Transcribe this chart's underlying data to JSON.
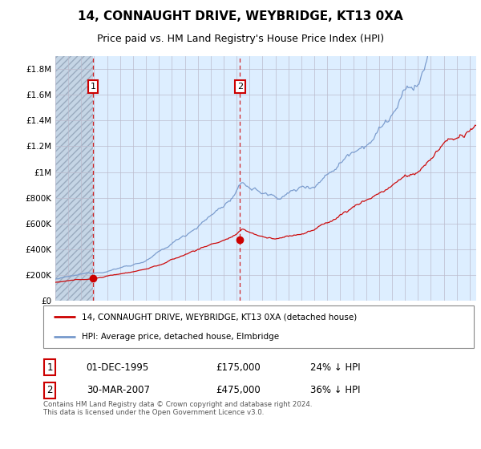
{
  "title": "14, CONNAUGHT DRIVE, WEYBRIDGE, KT13 0XA",
  "subtitle": "Price paid vs. HM Land Registry's House Price Index (HPI)",
  "ylabel_ticks": [
    "£0",
    "£200K",
    "£400K",
    "£600K",
    "£800K",
    "£1M",
    "£1.2M",
    "£1.4M",
    "£1.6M",
    "£1.8M"
  ],
  "ytick_values": [
    0,
    200000,
    400000,
    600000,
    800000,
    1000000,
    1200000,
    1400000,
    1600000,
    1800000
  ],
  "ylim": [
    0,
    1900000
  ],
  "xlim_start": 1993.0,
  "xlim_end": 2025.5,
  "hpi_color": "#7799cc",
  "price_color": "#cc0000",
  "marker_color": "#cc0000",
  "sale1_x": 1995.917,
  "sale1_y": 175000,
  "sale2_x": 2007.25,
  "sale2_y": 475000,
  "legend_line1": "14, CONNAUGHT DRIVE, WEYBRIDGE, KT13 0XA (detached house)",
  "legend_line2": "HPI: Average price, detached house, Elmbridge",
  "note1_label": "1",
  "note1_date": "01-DEC-1995",
  "note1_price": "£175,000",
  "note1_hpi": "24% ↓ HPI",
  "note2_label": "2",
  "note2_date": "30-MAR-2007",
  "note2_price": "£475,000",
  "note2_hpi": "36% ↓ HPI",
  "footer": "Contains HM Land Registry data © Crown copyright and database right 2024.\nThis data is licensed under the Open Government Licence v3.0.",
  "bg_color": "#ddeeff",
  "grid_color": "#bbbbcc",
  "title_fontsize": 11,
  "subtitle_fontsize": 9
}
